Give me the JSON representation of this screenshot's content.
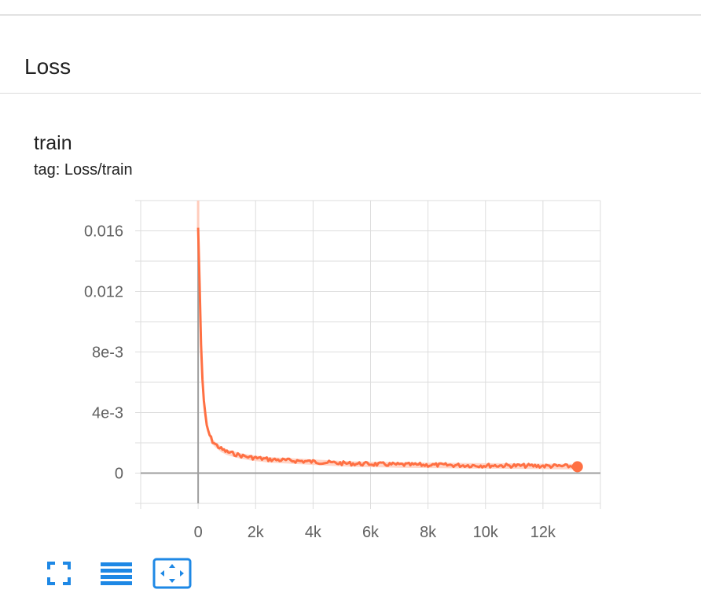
{
  "group": {
    "title": "Loss"
  },
  "card": {
    "title": "train",
    "tag": "tag: Loss/train"
  },
  "toolbar": {
    "buttons": [
      {
        "icon": "fullscreen-icon"
      },
      {
        "icon": "data-table-icon"
      },
      {
        "icon": "fit-domain-icon"
      }
    ]
  },
  "colors": {
    "series": "#ff7043",
    "series_raw": "#ffccbc",
    "grid": "#dddddd",
    "axis": "#9e9e9e",
    "icon": "#1e88e5"
  },
  "chart_data": {
    "type": "line",
    "title": "",
    "xlabel": "",
    "ylabel": "",
    "xlim": [
      -2000,
      14000
    ],
    "ylim": [
      -0.002,
      0.018
    ],
    "x_ticks": [
      0,
      2000,
      4000,
      6000,
      8000,
      10000,
      12000
    ],
    "x_tick_labels": [
      "0",
      "2k",
      "4k",
      "6k",
      "8k",
      "10k",
      "12k"
    ],
    "y_ticks": [
      0,
      0.004,
      0.008,
      0.012,
      0.016
    ],
    "y_tick_labels": [
      "0",
      "4e-3",
      "8e-3",
      "0.012",
      "0.016"
    ],
    "grid": true,
    "legend": "none",
    "series": [
      {
        "x": [
          0,
          50,
          100,
          150,
          200,
          250,
          300,
          400,
          500,
          600,
          800,
          1000,
          1200,
          1500,
          1800,
          2000,
          2500,
          3000,
          3500,
          4000,
          4500,
          5000,
          5500,
          6000,
          6500,
          7000,
          7500,
          8000,
          8500,
          9000,
          9500,
          10000,
          10500,
          11000,
          11500,
          12000,
          12500,
          13000,
          13200
        ],
        "y": [
          0.0162,
          0.0125,
          0.0085,
          0.0062,
          0.0048,
          0.0038,
          0.0031,
          0.0025,
          0.0021,
          0.0019,
          0.0016,
          0.0014,
          0.0013,
          0.00115,
          0.00105,
          0.001,
          0.0009,
          0.00085,
          0.0008,
          0.00075,
          0.0007,
          0.00065,
          0.00062,
          0.0006,
          0.00058,
          0.00056,
          0.00055,
          0.00054,
          0.00053,
          0.00052,
          0.00051,
          0.0005,
          0.0005,
          0.00049,
          0.00048,
          0.00047,
          0.00046,
          0.00045,
          0.00042
        ]
      }
    ]
  }
}
